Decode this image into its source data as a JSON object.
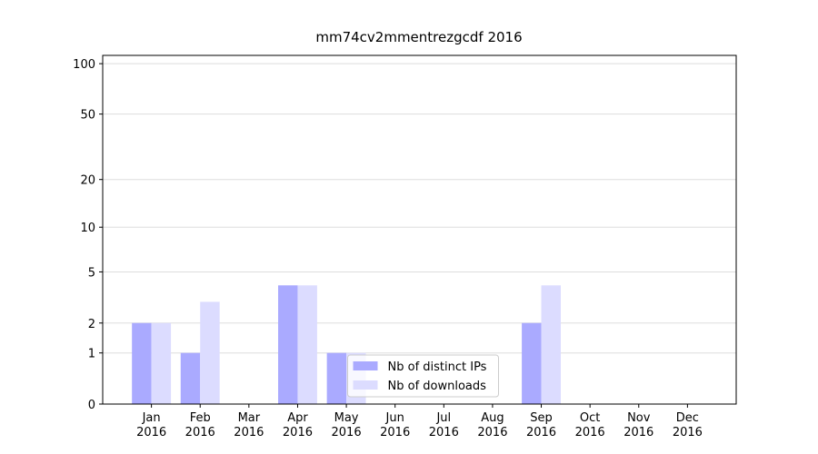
{
  "chart_data": {
    "type": "bar",
    "title": "mm74cv2mmentrezgcdf 2016",
    "categories": [
      "Jan 2016",
      "Feb 2016",
      "Mar 2016",
      "Apr 2016",
      "May 2016",
      "Jun 2016",
      "Jul 2016",
      "Aug 2016",
      "Sep 2016",
      "Oct 2016",
      "Nov 2016",
      "Dec 2016"
    ],
    "series": [
      {
        "name": "Nb of distinct IPs",
        "color": "#aaaaff",
        "values": [
          2,
          1,
          0,
          4,
          1,
          0,
          0,
          0,
          2,
          0,
          0,
          0
        ]
      },
      {
        "name": "Nb of downloads",
        "color": "#dcdcff",
        "values": [
          2,
          3,
          0,
          4,
          1,
          0,
          0,
          0,
          4,
          0,
          0,
          0
        ]
      }
    ],
    "yscale": "log1p",
    "ylim": [
      0,
      112
    ],
    "yticks": [
      0,
      1,
      2,
      5,
      10,
      20,
      50,
      100
    ],
    "grid": true,
    "legend": "lower center"
  }
}
